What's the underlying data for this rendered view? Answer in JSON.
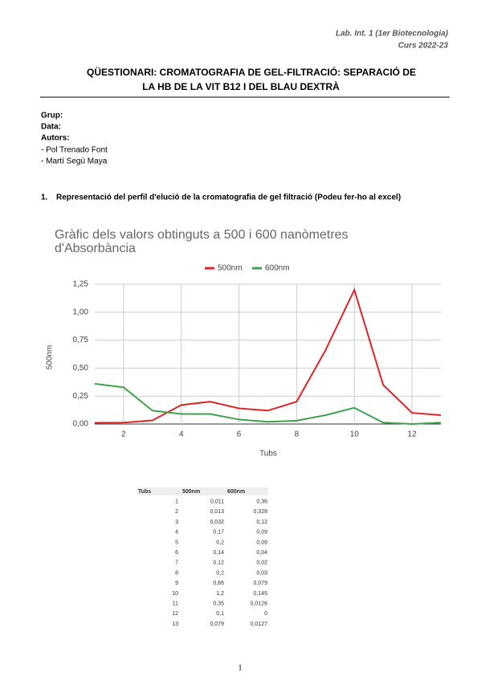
{
  "header": {
    "course": "Lab. Int. 1 (1er Biotecnologia)",
    "year": "Curs 2022-23"
  },
  "title": [
    "QÜESTIONARI: CROMATOGRAFIA DE GEL-FILTRACIÓ: SEPARACIÓ DE",
    "LA HB DE LA VIT B12 I DEL BLAU DEXTRÀ"
  ],
  "fields": {
    "group": "Grup:",
    "date": "Data:",
    "authors": "Autors:",
    "author_list": [
      "- Pol Trenado Font",
      "- Martí Segú Maya"
    ]
  },
  "section": {
    "number": "1.",
    "heading": "Representació del perfil d'elució de la cromatografia de gel filtració (Podeu fer-ho al excel)"
  },
  "chart_data": {
    "type": "line",
    "title": [
      "Gràfic dels valors obtinguts a 500 i 600 nanòmetres",
      "d'Absorbància"
    ],
    "x_label": "Tubs",
    "y_label": "500nm",
    "x": [
      1,
      2,
      3,
      4,
      5,
      6,
      7,
      8,
      9,
      10,
      11,
      12,
      13
    ],
    "series": [
      {
        "name": "500nm",
        "color": "#dc2626",
        "values": [
          0.011,
          0.013,
          0.032,
          0.17,
          0.2,
          0.14,
          0.12,
          0.2,
          0.66,
          1.2,
          0.35,
          0.1,
          0.079
        ]
      },
      {
        "name": "600nm",
        "color": "#3fa34d",
        "values": [
          0.36,
          0.328,
          0.12,
          0.09,
          0.09,
          0.04,
          0.02,
          0.03,
          0.079,
          0.145,
          0.0126,
          0,
          0.0127
        ]
      }
    ],
    "xlim": [
      1,
      13
    ],
    "xticks": [
      2,
      4,
      6,
      8,
      10,
      12
    ],
    "ylim": [
      0,
      1.25
    ],
    "yticks": [
      {
        "value": 0,
        "label": "0,00"
      },
      {
        "value": 0.25,
        "label": "0,25"
      },
      {
        "value": 0.5,
        "label": "0,50"
      },
      {
        "value": 0.75,
        "label": "0,75"
      },
      {
        "value": 1,
        "label": "1,00"
      },
      {
        "value": 1.25,
        "label": "1,25"
      }
    ],
    "grid": true,
    "legend": "top"
  },
  "table": {
    "header": [
      "Tubs",
      "500nm",
      "600nm"
    ],
    "rows": [
      [
        "1",
        "0,011",
        "0,36"
      ],
      [
        "2",
        "0,013",
        "0,328"
      ],
      [
        "3",
        "0,032",
        "0,12"
      ],
      [
        "4",
        "0,17",
        "0,09"
      ],
      [
        "5",
        "0,2",
        "0,09"
      ],
      [
        "6",
        "0,14",
        "0,04"
      ],
      [
        "7",
        "0,12",
        "0,02"
      ],
      [
        "8",
        "0,2",
        "0,03"
      ],
      [
        "9",
        "0,66",
        "0,079"
      ],
      [
        "10",
        "1,2",
        "0,145"
      ],
      [
        "11",
        "0,35",
        "0,0126"
      ],
      [
        "12",
        "0,1",
        "0"
      ],
      [
        "13",
        "0,079",
        "0,0127"
      ]
    ]
  },
  "page_number": "1"
}
